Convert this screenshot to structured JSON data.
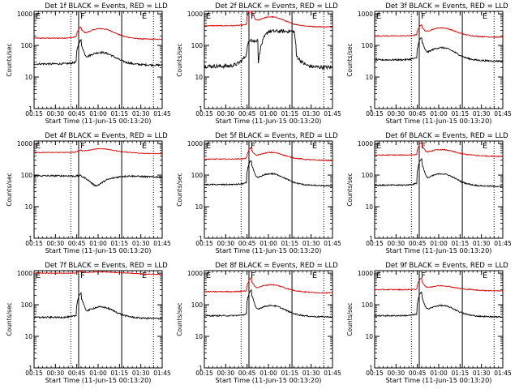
{
  "figure": {
    "xlabel_prefix": "Start Time",
    "start_time": "(11-Jun-15 00:13:20)",
    "ylabel": "Counts/sec",
    "xticks": [
      "00:15",
      "00:30",
      "00:45",
      "01:00",
      "01:15",
      "01:30",
      "01:45"
    ],
    "yticks": [
      "1",
      "10",
      "100",
      "1000"
    ],
    "black_color": "#000000",
    "red_color": "#dd0000"
  },
  "chart_data": [
    {
      "type": "line",
      "title": "Det 1f BLACK = Events, RED = LLD",
      "ylim": [
        1,
        1200
      ],
      "yscale": "log",
      "black": {
        "base": 26,
        "flare": 100,
        "hump": 60,
        "noise": 0.06
      },
      "red": {
        "base": 170,
        "flare": 280,
        "hump": 340,
        "noise": 0.03
      },
      "markers": {
        "dotted": [
          0.287,
          0.932
        ],
        "solid": [
          0.348,
          0.684
        ],
        "letters": [
          "E",
          "F",
          "E"
        ]
      }
    },
    {
      "type": "line",
      "title": "Det 2f BLACK = Events, RED = LLD",
      "ylim": [
        1,
        1200
      ],
      "yscale": "log",
      "black": {
        "base": 22,
        "flare": 80,
        "hump": 280,
        "noise": 0.12,
        "plateau": [
          0.42,
          0.72
        ]
      },
      "red": {
        "base": 420,
        "flare": 1100,
        "hump": 800,
        "noise": 0.03
      },
      "markers": {
        "dotted": [
          0.287,
          0.932
        ],
        "solid": [
          0.348,
          0.684
        ],
        "letters": [
          "E",
          "F",
          "E"
        ]
      }
    },
    {
      "type": "line",
      "title": "Det 3f BLACK = Events, RED = LLD",
      "ylim": [
        1,
        1200
      ],
      "yscale": "log",
      "black": {
        "base": 35,
        "flare": 120,
        "hump": 85,
        "noise": 0.05
      },
      "red": {
        "base": 200,
        "flare": 340,
        "hump": 360,
        "noise": 0.03
      },
      "markers": {
        "dotted": [
          0.287,
          0.932
        ],
        "solid": [
          0.348,
          0.684
        ],
        "letters": [
          "E",
          "F",
          "E"
        ]
      }
    },
    {
      "type": "line",
      "title": "Det 4f BLACK = Events, RED = LLD",
      "ylim": [
        1,
        1200
      ],
      "yscale": "log",
      "black": {
        "base": 95,
        "flare": 100,
        "hump": 70,
        "noise": 0.05,
        "dip": true
      },
      "red": {
        "base": 520,
        "flare": 560,
        "hump": 680,
        "noise": 0.02
      },
      "markers": {
        "dotted": [
          0.287,
          0.932
        ],
        "solid": [
          0.348,
          0.684
        ],
        "letters": [
          "E",
          "F",
          "E"
        ]
      }
    },
    {
      "type": "line",
      "title": "Det 5f BLACK = Events, RED = LLD",
      "ylim": [
        1,
        1200
      ],
      "yscale": "log",
      "black": {
        "base": 50,
        "flare": 200,
        "hump": 110,
        "noise": 0.04
      },
      "red": {
        "base": 320,
        "flare": 560,
        "hump": 520,
        "noise": 0.03
      },
      "markers": {
        "dotted": [
          0.287,
          0.932
        ],
        "solid": [
          0.348,
          0.684
        ],
        "letters": [
          "E",
          "F",
          "E"
        ]
      }
    },
    {
      "type": "line",
      "title": "Det 6f BLACK = Events, RED = LLD",
      "ylim": [
        1,
        1200
      ],
      "yscale": "log",
      "black": {
        "base": 48,
        "flare": 220,
        "hump": 110,
        "noise": 0.04
      },
      "red": {
        "base": 430,
        "flare": 820,
        "hump": 640,
        "noise": 0.03
      },
      "markers": {
        "dotted": [
          0.287,
          0.932
        ],
        "solid": [
          0.348,
          0.684
        ],
        "letters": [
          "E",
          "F",
          "E"
        ]
      }
    },
    {
      "type": "line",
      "title": "Det 7f BLACK = Events, RED = LLD",
      "ylim": [
        1,
        1200
      ],
      "yscale": "log",
      "black": {
        "base": 40,
        "flare": 160,
        "hump": 85,
        "noise": 0.05
      },
      "red": {
        "base": 1000,
        "flare": 1100,
        "hump": 1100,
        "noise": 0.02
      },
      "markers": {
        "dotted": [
          0.287,
          0.932
        ],
        "solid": [
          0.348,
          0.684
        ],
        "letters": [
          "E",
          "F",
          "E"
        ]
      }
    },
    {
      "type": "line",
      "title": "Det 8f BLACK = Events, RED = LLD",
      "ylim": [
        1,
        1200
      ],
      "yscale": "log",
      "black": {
        "base": 45,
        "flare": 200,
        "hump": 95,
        "noise": 0.04
      },
      "red": {
        "base": 260,
        "flare": 520,
        "hump": 430,
        "noise": 0.03
      },
      "markers": {
        "dotted": [
          0.287,
          0.932
        ],
        "solid": [
          0.348,
          0.684
        ],
        "letters": [
          "E",
          "F",
          "E"
        ]
      }
    },
    {
      "type": "line",
      "title": "Det 9f BLACK = Events, RED = LLD",
      "ylim": [
        1,
        1200
      ],
      "yscale": "log",
      "black": {
        "base": 45,
        "flare": 170,
        "hump": 95,
        "noise": 0.04
      },
      "red": {
        "base": 300,
        "flare": 540,
        "hump": 400,
        "noise": 0.03
      },
      "markers": {
        "dotted": [
          0.287,
          0.932
        ],
        "solid": [
          0.348,
          0.684
        ],
        "letters": [
          "E",
          "F",
          "E"
        ]
      }
    }
  ]
}
